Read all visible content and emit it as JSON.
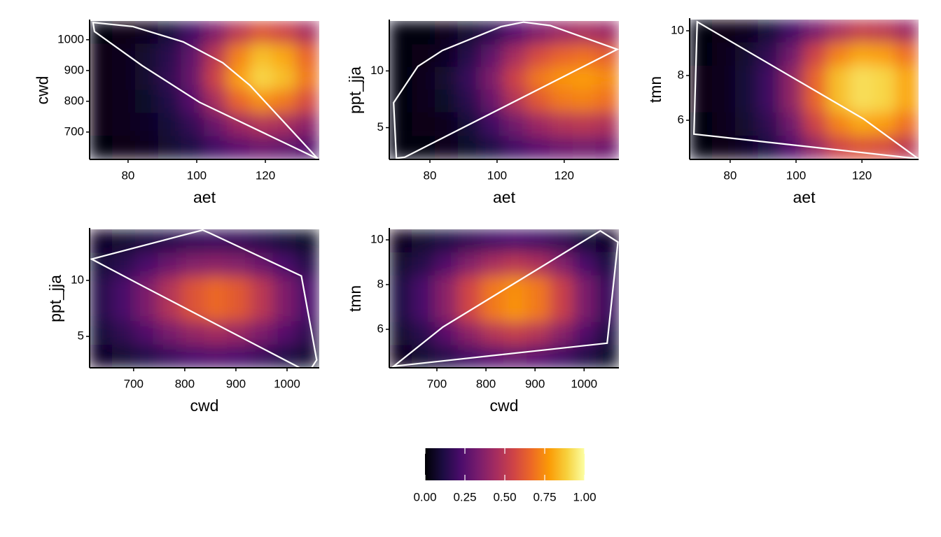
{
  "chart_data": [
    {
      "type": "heatmap",
      "xlabel": "aet",
      "ylabel": "cwd",
      "xlim": [
        68.8,
        135.7
      ],
      "ylim": [
        611,
        1061
      ],
      "xticks": [
        80,
        100,
        120
      ],
      "yticks": [
        700,
        800,
        900,
        1000
      ],
      "x": [
        72.1,
        78.8,
        85.5,
        92.2,
        98.9,
        105.6,
        112.2,
        118.9,
        125.6,
        132.3
      ],
      "y": [
        1023.5,
        948.5,
        873.5,
        798.5,
        723.5,
        648.5
      ],
      "z": [
        [
          0.02,
          0.03,
          0.05,
          0.1,
          0.2,
          0.35,
          0.5,
          0.6,
          0.55,
          0.45
        ],
        [
          0.03,
          0.05,
          0.08,
          0.15,
          0.28,
          0.5,
          0.72,
          0.85,
          0.8,
          0.65
        ],
        [
          0.03,
          0.05,
          0.08,
          0.16,
          0.3,
          0.55,
          0.78,
          0.9,
          0.85,
          0.7
        ],
        [
          0.03,
          0.04,
          0.07,
          0.13,
          0.25,
          0.45,
          0.65,
          0.75,
          0.7,
          0.58
        ],
        [
          0.03,
          0.04,
          0.06,
          0.1,
          0.17,
          0.3,
          0.42,
          0.48,
          0.45,
          0.38
        ],
        [
          0.02,
          0.03,
          0.05,
          0.08,
          0.12,
          0.2,
          0.26,
          0.3,
          0.28,
          0.24
        ]
      ],
      "hull": {
        "x": [
          69.8,
          81.4,
          96.1,
          107.6,
          115.5,
          135.3,
          100.8,
          84.1,
          70.2
        ],
        "y": [
          1056,
          1043,
          993,
          925,
          852,
          613,
          797,
          916,
          1027
        ]
      },
      "hull_color": "#ffffff"
    },
    {
      "type": "heatmap",
      "xlabel": "aet",
      "ylabel": "ppt_jja",
      "xlim": [
        67.9,
        136.3
      ],
      "ylim": [
        2.2,
        14.4
      ],
      "xticks": [
        80,
        100,
        120
      ],
      "yticks": [
        5,
        10
      ],
      "x": [
        71.3,
        78.2,
        85.0,
        91.8,
        98.7,
        105.5,
        112.4,
        119.2,
        126.0,
        132.9
      ],
      "y": [
        13.4,
        11.3,
        9.3,
        7.3,
        5.3,
        3.2
      ],
      "z": [
        [
          0.01,
          0.02,
          0.04,
          0.08,
          0.15,
          0.25,
          0.35,
          0.42,
          0.45,
          0.42
        ],
        [
          0.02,
          0.03,
          0.06,
          0.14,
          0.28,
          0.45,
          0.58,
          0.65,
          0.68,
          0.64
        ],
        [
          0.02,
          0.04,
          0.08,
          0.18,
          0.35,
          0.55,
          0.7,
          0.76,
          0.78,
          0.74
        ],
        [
          0.02,
          0.04,
          0.07,
          0.15,
          0.3,
          0.48,
          0.62,
          0.7,
          0.72,
          0.68
        ],
        [
          0.02,
          0.03,
          0.05,
          0.1,
          0.2,
          0.32,
          0.42,
          0.48,
          0.5,
          0.47
        ],
        [
          0.01,
          0.02,
          0.04,
          0.07,
          0.12,
          0.2,
          0.26,
          0.3,
          0.32,
          0.3
        ]
      ],
      "hull": {
        "x": [
          69.2,
          76.4,
          83.7,
          101.2,
          107.9,
          115.8,
          135.8,
          72.5,
          70.0
        ],
        "y": [
          7.2,
          10.4,
          11.8,
          13.9,
          14.3,
          14.0,
          11.9,
          2.4,
          2.3
        ]
      },
      "hull_color": "#ffffff"
    },
    {
      "type": "heatmap",
      "xlabel": "aet",
      "ylabel": "tmn",
      "xlim": [
        67.7,
        137.2
      ],
      "ylim": [
        4.25,
        10.5
      ],
      "xticks": [
        80,
        100,
        120
      ],
      "yticks": [
        6,
        8,
        10
      ],
      "x": [
        71.2,
        78.1,
        85.1,
        92.0,
        99.0,
        105.9,
        112.9,
        119.8,
        126.8,
        133.7
      ],
      "y": [
        9.98,
        8.94,
        7.9,
        6.85,
        5.81,
        4.77
      ],
      "z": [
        [
          0.02,
          0.03,
          0.05,
          0.1,
          0.2,
          0.33,
          0.45,
          0.52,
          0.5,
          0.42
        ],
        [
          0.02,
          0.04,
          0.08,
          0.16,
          0.32,
          0.55,
          0.72,
          0.8,
          0.78,
          0.68
        ],
        [
          0.03,
          0.05,
          0.1,
          0.2,
          0.4,
          0.65,
          0.85,
          0.92,
          0.9,
          0.8
        ],
        [
          0.03,
          0.05,
          0.1,
          0.2,
          0.4,
          0.65,
          0.85,
          0.92,
          0.9,
          0.8
        ],
        [
          0.02,
          0.04,
          0.08,
          0.16,
          0.32,
          0.55,
          0.72,
          0.8,
          0.78,
          0.68
        ],
        [
          0.02,
          0.03,
          0.06,
          0.12,
          0.24,
          0.4,
          0.55,
          0.6,
          0.58,
          0.5
        ]
      ],
      "hull": {
        "x": [
          70.0,
          120.5,
          137.1,
          69.0
        ],
        "y": [
          10.4,
          6.06,
          4.28,
          5.38
        ]
      },
      "hull_color": "#ffffff"
    },
    {
      "type": "heatmap",
      "xlabel": "cwd",
      "ylabel": "ppt_jja",
      "xlim": [
        614,
        1063
      ],
      "ylim": [
        2.2,
        14.56
      ],
      "xticks": [
        700,
        800,
        900,
        1000
      ],
      "yticks": [
        5,
        10
      ],
      "x": [
        636,
        681,
        726,
        771,
        816,
        861,
        906,
        951,
        995,
        1040
      ],
      "y": [
        13.5,
        11.4,
        9.3,
        7.3,
        5.3,
        3.2
      ],
      "z": [
        [
          0.06,
          0.08,
          0.11,
          0.14,
          0.17,
          0.18,
          0.17,
          0.14,
          0.1,
          0.07
        ],
        [
          0.1,
          0.15,
          0.22,
          0.3,
          0.36,
          0.38,
          0.36,
          0.3,
          0.22,
          0.14
        ],
        [
          0.14,
          0.22,
          0.34,
          0.48,
          0.6,
          0.66,
          0.62,
          0.5,
          0.35,
          0.22
        ],
        [
          0.14,
          0.22,
          0.34,
          0.48,
          0.6,
          0.66,
          0.62,
          0.5,
          0.35,
          0.22
        ],
        [
          0.1,
          0.16,
          0.24,
          0.33,
          0.4,
          0.44,
          0.41,
          0.34,
          0.25,
          0.16
        ],
        [
          0.06,
          0.09,
          0.13,
          0.18,
          0.22,
          0.24,
          0.22,
          0.18,
          0.13,
          0.09
        ]
      ],
      "hull": {
        "x": [
          618,
          835,
          850,
          1028,
          1058,
          1048,
          1025,
          722
        ],
        "y": [
          11.9,
          14.5,
          14.2,
          10.4,
          2.9,
          2.2,
          2.2,
          9.4
        ]
      },
      "hull_color": "#ffffff"
    },
    {
      "type": "heatmap",
      "xlabel": "cwd",
      "ylabel": "tmn",
      "xlim": [
        603,
        1071
      ],
      "ylim": [
        4.28,
        10.47
      ],
      "xticks": [
        700,
        800,
        900,
        1000
      ],
      "yticks": [
        6,
        8,
        10
      ],
      "x": [
        626,
        673,
        720,
        767,
        814,
        860,
        907,
        954,
        1001,
        1048
      ],
      "y": [
        9.95,
        8.91,
        7.87,
        6.83,
        5.79,
        4.76
      ],
      "z": [
        [
          0.05,
          0.08,
          0.12,
          0.16,
          0.2,
          0.22,
          0.2,
          0.16,
          0.1,
          0.06
        ],
        [
          0.08,
          0.14,
          0.24,
          0.36,
          0.45,
          0.5,
          0.46,
          0.36,
          0.22,
          0.12
        ],
        [
          0.12,
          0.22,
          0.38,
          0.56,
          0.7,
          0.75,
          0.7,
          0.54,
          0.34,
          0.18
        ],
        [
          0.12,
          0.22,
          0.38,
          0.56,
          0.7,
          0.76,
          0.7,
          0.54,
          0.34,
          0.18
        ],
        [
          0.08,
          0.15,
          0.26,
          0.38,
          0.48,
          0.52,
          0.48,
          0.37,
          0.24,
          0.12
        ],
        [
          0.05,
          0.09,
          0.14,
          0.2,
          0.25,
          0.28,
          0.25,
          0.2,
          0.13,
          0.07
        ]
      ],
      "hull": {
        "x": [
          612,
          712,
          1033,
          1069,
          1047
        ],
        "y": [
          4.35,
          6.1,
          10.4,
          9.9,
          5.38
        ]
      },
      "hull_color": "#ffffff"
    }
  ],
  "colorbar": {
    "lim": [
      0,
      1
    ],
    "ticks": [
      {
        "value": 0,
        "label": "0.00"
      },
      {
        "value": 0.25,
        "label": "0.25"
      },
      {
        "value": 0.5,
        "label": "0.50"
      },
      {
        "value": 0.75,
        "label": "0.75"
      },
      {
        "value": 1,
        "label": "1.00"
      }
    ],
    "colors": [
      "#000004",
      "#1b0c41",
      "#4a0c6b",
      "#781c6d",
      "#a52c60",
      "#cf4446",
      "#ed6925",
      "#fb9b06",
      "#f7d13d",
      "#fcffa4"
    ]
  }
}
